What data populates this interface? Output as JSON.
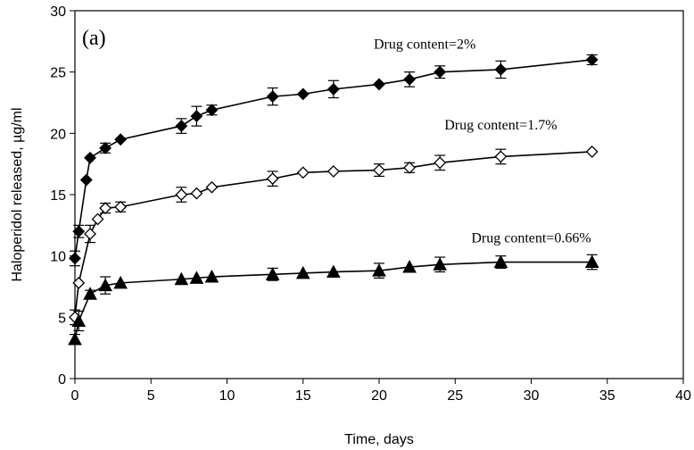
{
  "chart_data": {
    "type": "line",
    "panel_label": "(a)",
    "title": "",
    "xlabel": "Time, days",
    "ylabel": "Haloperidol released, µg/ml",
    "xlim": [
      0,
      40
    ],
    "ylim": [
      0,
      30
    ],
    "xticks": [
      0,
      5,
      10,
      15,
      20,
      25,
      30,
      35,
      40
    ],
    "yticks": [
      0,
      5,
      10,
      15,
      20,
      25,
      30
    ],
    "grid": false,
    "legend": "none",
    "series": [
      {
        "label": "Drug content=2%",
        "marker": "diamond-filled",
        "x": [
          0,
          0.25,
          0.75,
          1,
          2,
          3,
          7,
          8,
          9,
          13,
          15,
          17,
          20,
          22,
          24,
          28,
          34
        ],
        "y": [
          9.8,
          12.0,
          16.2,
          18.0,
          18.8,
          19.5,
          20.6,
          21.4,
          21.9,
          23.0,
          23.2,
          23.6,
          24.0,
          24.4,
          25.0,
          25.2,
          26.0
        ],
        "err": [
          0.6,
          0.5,
          0,
          0,
          0.4,
          0,
          0.6,
          0.8,
          0.4,
          0.7,
          0,
          0.7,
          0,
          0.6,
          0.5,
          0.7,
          0.4
        ]
      },
      {
        "label": "Drug content=1.7%",
        "marker": "diamond-open",
        "x": [
          0,
          0.25,
          1,
          1.5,
          2,
          3,
          7,
          8,
          9,
          13,
          15,
          17,
          20,
          22,
          24,
          28,
          34
        ],
        "y": [
          5.0,
          7.8,
          11.8,
          13.0,
          13.9,
          14.0,
          15.0,
          15.1,
          15.6,
          16.3,
          16.8,
          16.9,
          17.0,
          17.2,
          17.6,
          18.1,
          18.5
        ],
        "err": [
          0.6,
          0,
          0.7,
          0,
          0.4,
          0.4,
          0.6,
          0,
          0,
          0.6,
          0,
          0,
          0.5,
          0.4,
          0.6,
          0.6,
          0
        ]
      },
      {
        "label": "Drug content=0.66%",
        "marker": "triangle-filled",
        "x": [
          0,
          0.25,
          1,
          2,
          3,
          7,
          8,
          9,
          13,
          15,
          17,
          20,
          22,
          24,
          28,
          34
        ],
        "y": [
          3.2,
          4.7,
          6.9,
          7.6,
          7.8,
          8.1,
          8.2,
          8.3,
          8.5,
          8.6,
          8.7,
          8.8,
          9.1,
          9.3,
          9.5,
          9.5
        ],
        "err": [
          0.4,
          0.8,
          0.3,
          0.7,
          0,
          0,
          0,
          0,
          0.5,
          0,
          0,
          0.6,
          0,
          0.6,
          0.5,
          0.6
        ]
      }
    ],
    "annotations": [
      {
        "series": 0,
        "x": 23,
        "y": 26.9
      },
      {
        "series": 1,
        "x": 28,
        "y": 20.3
      },
      {
        "series": 2,
        "x": 30,
        "y": 11.1
      }
    ]
  }
}
